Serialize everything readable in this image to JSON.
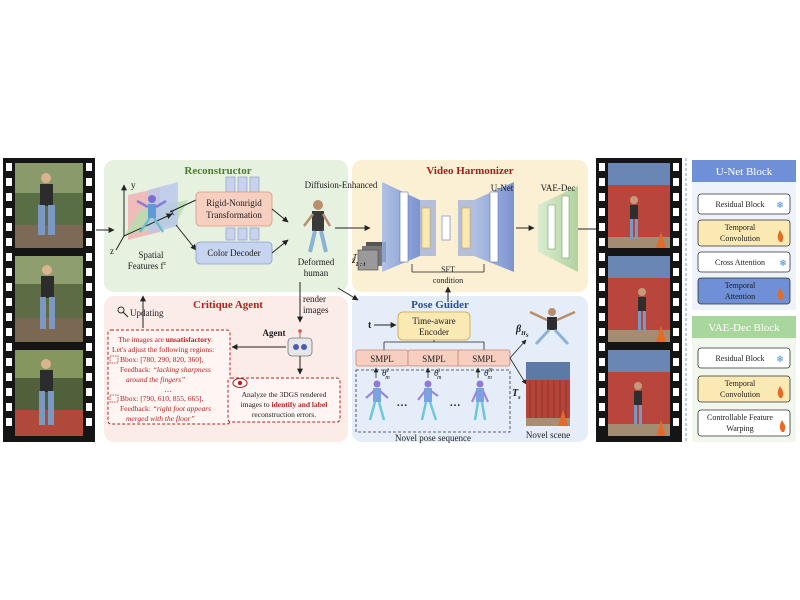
{
  "reconstructor": {
    "title": "Reconstructor",
    "axis_y": "y",
    "axis_x": "x",
    "axis_z": "z",
    "spatial_features": "Spatial",
    "spatial_features_2": "Features f",
    "spatial_features_sup": "c",
    "transform": "Rigid-Nonrigid",
    "transform_2": "Transformation",
    "color_decoder": "Color Decoder",
    "deformed_human": "Deformed",
    "deformed_human_2": "human",
    "diffusion_enhanced": "Diffusion-Enhanced"
  },
  "harmonizer": {
    "title": "Video Harmonizer",
    "unet": "U-Net",
    "vae_dec": "VAE-Dec",
    "sft": "SFT",
    "sft_2": "condition",
    "latent": "z",
    "latent_sub": "1 : t",
    "latent_sup": "T"
  },
  "critique": {
    "title": "Critique Agent",
    "updating": "Updating",
    "render_images": "render",
    "render_images_2": "images",
    "agent": "Agent",
    "l1_a": "The images are ",
    "l1_b": "unsatisfactory",
    "l1_c": ".",
    "l2": "Let's adjust the following regions:",
    "bbox1": "Bbox: [780, 290, 820, 360],",
    "fb1_a": "Feedback: ",
    "fb1_b": "“lacking sharpness",
    "fb1_c": "around the fingers”",
    "ellipsis": "…",
    "bbox2": "Bbox: [790, 610, 855, 665],",
    "fb2_a": "Feedback: ",
    "fb2_b": "“right foot appears",
    "fb2_c": "merged with the floor”",
    "an_1": "Analyze the 3DGS rendered",
    "an_2a": "images to ",
    "an_2b": "identify and label",
    "an_3": "reconstruction errors."
  },
  "pose": {
    "title": "Pose Guider",
    "t": "t",
    "encoder": "Time-aware",
    "encoder_2": "Encoder",
    "smpl": "SMPL",
    "theta1": "θ",
    "theta1_sup": "1",
    "theta1_sub": "m",
    "thetai": "θ",
    "thetai_sup": "i",
    "thetai_sub": "m",
    "thetaN": "θ",
    "thetaN_sup": "N",
    "thetaN_sub": "m",
    "dots": "…",
    "novel_pose": "Novel pose sequence",
    "beta": "β",
    "beta_sub": "H",
    "beta_sub2": "S",
    "ts": "T",
    "ts_sub": "s",
    "novel_scene": "Novel scene"
  },
  "legend": {
    "unet_title": "U-Net Block",
    "unet_items": [
      "Residual Block",
      "Temporal",
      "Convolution",
      "Cross Attention",
      "Temporal",
      "Attention"
    ],
    "vae_title": "VAE-Dec Block",
    "vae_items": [
      "Residual Block",
      "Temporal",
      "Convolution",
      "Controllable Feature",
      "Warping"
    ]
  },
  "colors": {
    "reconstructor_bg": "#e6f1e0",
    "harmonizer_bg": "#fbf0d4",
    "critique_bg": "#fbece8",
    "pose_bg": "#e5eef8",
    "unet_block": "#6f8fd6",
    "critique_red": "#b22222"
  }
}
